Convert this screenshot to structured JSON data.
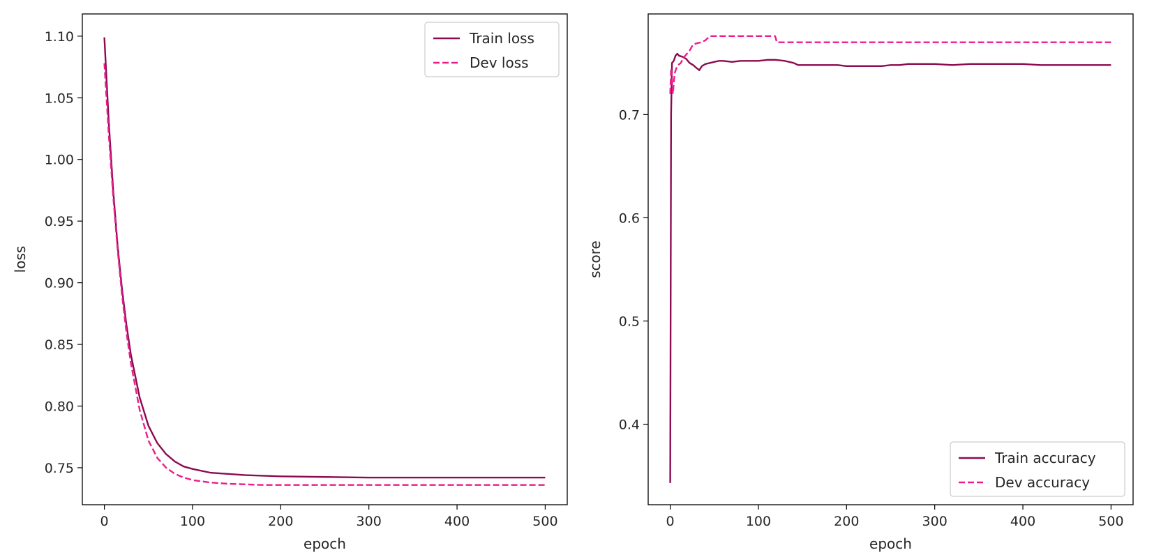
{
  "colors": {
    "train": "#8b0a50",
    "dev": "#ec1c8c",
    "axes": "#000000",
    "legend_border": "#cccccc"
  },
  "chart_data": [
    {
      "type": "line",
      "xlabel": "epoch",
      "ylabel": "loss",
      "xlim": [
        -25,
        525
      ],
      "ylim": [
        0.72,
        1.118
      ],
      "xticks": [
        0,
        100,
        200,
        300,
        400,
        500
      ],
      "yticks": [
        0.75,
        0.8,
        0.85,
        0.9,
        0.95,
        1.0,
        1.05,
        1.1
      ],
      "ytick_labels": [
        "0.75",
        "0.80",
        "0.85",
        "0.90",
        "0.95",
        "1.00",
        "1.05",
        "1.10"
      ],
      "xtick_labels": [
        "0",
        "100",
        "200",
        "300",
        "400",
        "500"
      ],
      "legend_position": "top-right",
      "series": [
        {
          "name": "Train loss",
          "style": "solid",
          "x": [
            0,
            5,
            10,
            15,
            20,
            25,
            30,
            40,
            50,
            60,
            70,
            80,
            90,
            100,
            120,
            140,
            160,
            180,
            200,
            250,
            300,
            350,
            400,
            450,
            500
          ],
          "y": [
            1.099,
            1.03,
            0.975,
            0.93,
            0.895,
            0.866,
            0.842,
            0.807,
            0.784,
            0.77,
            0.761,
            0.755,
            0.751,
            0.749,
            0.746,
            0.745,
            0.744,
            0.7435,
            0.743,
            0.7425,
            0.742,
            0.742,
            0.742,
            0.742,
            0.742
          ]
        },
        {
          "name": "Dev loss",
          "style": "dashed",
          "x": [
            0,
            5,
            10,
            15,
            20,
            25,
            30,
            40,
            50,
            60,
            70,
            80,
            90,
            100,
            120,
            140,
            160,
            180,
            200,
            250,
            300,
            350,
            400,
            450,
            500
          ],
          "y": [
            1.078,
            1.02,
            0.97,
            0.927,
            0.89,
            0.86,
            0.835,
            0.797,
            0.772,
            0.758,
            0.75,
            0.745,
            0.742,
            0.74,
            0.738,
            0.737,
            0.7365,
            0.736,
            0.736,
            0.736,
            0.736,
            0.736,
            0.736,
            0.736,
            0.736
          ]
        }
      ]
    },
    {
      "type": "line",
      "xlabel": "epoch",
      "ylabel": "score",
      "xlim": [
        -25,
        525
      ],
      "ylim": [
        0.322,
        0.7975
      ],
      "xticks": [
        0,
        100,
        200,
        300,
        400,
        500
      ],
      "yticks": [
        0.4,
        0.5,
        0.6,
        0.7
      ],
      "ytick_labels": [
        "0.4",
        "0.5",
        "0.6",
        "0.7"
      ],
      "xtick_labels": [
        "0",
        "100",
        "200",
        "300",
        "400",
        "500"
      ],
      "legend_position": "bottom-right",
      "series": [
        {
          "name": "Train accuracy",
          "style": "solid",
          "x": [
            0,
            1,
            2,
            4,
            6,
            8,
            10,
            14,
            18,
            22,
            26,
            30,
            33,
            36,
            40,
            45,
            50,
            55,
            60,
            70,
            80,
            90,
            100,
            110,
            120,
            130,
            140,
            145,
            160,
            190,
            200,
            240,
            250,
            260,
            270,
            300,
            320,
            340,
            360,
            400,
            420,
            440,
            480,
            500
          ],
          "y": [
            0.343,
            0.7,
            0.75,
            0.752,
            0.757,
            0.759,
            0.757,
            0.756,
            0.754,
            0.75,
            0.748,
            0.745,
            0.743,
            0.747,
            0.749,
            0.75,
            0.751,
            0.752,
            0.752,
            0.751,
            0.752,
            0.752,
            0.752,
            0.753,
            0.753,
            0.752,
            0.75,
            0.748,
            0.748,
            0.748,
            0.747,
            0.747,
            0.748,
            0.748,
            0.749,
            0.749,
            0.748,
            0.749,
            0.749,
            0.749,
            0.748,
            0.748,
            0.748,
            0.748
          ]
        },
        {
          "name": "Dev accuracy",
          "style": "dashed",
          "x": [
            0,
            1,
            2,
            3,
            5,
            7,
            9,
            12,
            15,
            18,
            22,
            26,
            30,
            35,
            40,
            45,
            60,
            80,
            100,
            119,
            121,
            150,
            200,
            300,
            400,
            500
          ],
          "y": [
            0.72,
            0.745,
            0.735,
            0.72,
            0.74,
            0.745,
            0.748,
            0.75,
            0.755,
            0.758,
            0.762,
            0.768,
            0.769,
            0.77,
            0.772,
            0.776,
            0.776,
            0.776,
            0.776,
            0.776,
            0.77,
            0.77,
            0.77,
            0.77,
            0.77,
            0.77
          ]
        }
      ]
    }
  ]
}
